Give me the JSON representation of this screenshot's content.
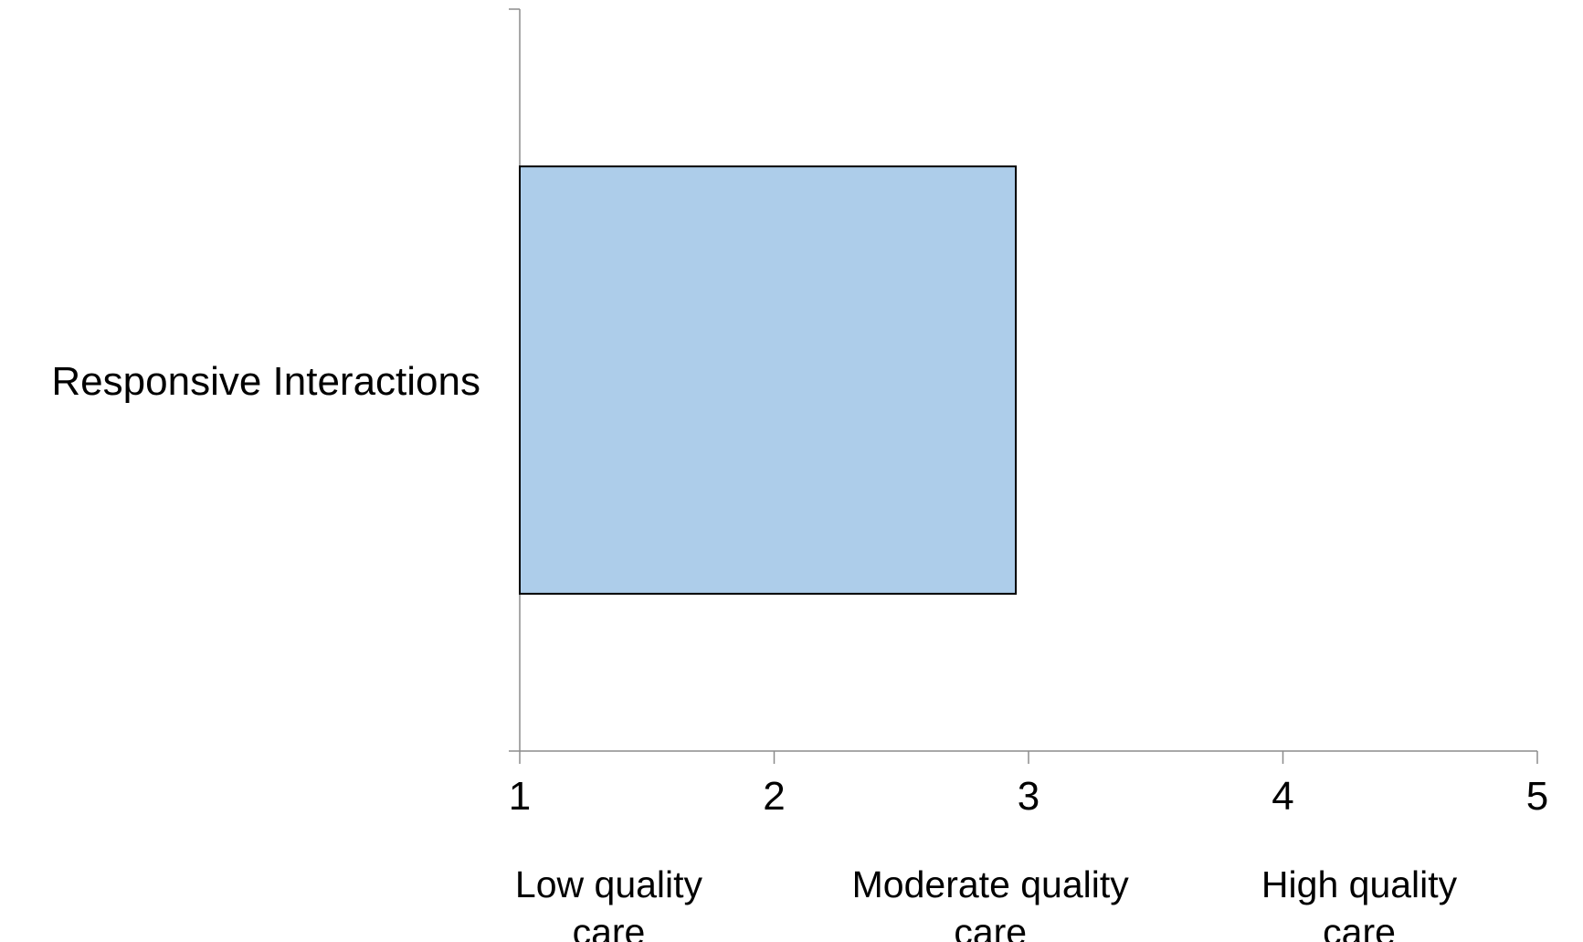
{
  "chart_data": {
    "type": "bar",
    "orientation": "horizontal",
    "categories": [
      "Responsive Interactions"
    ],
    "values": [
      2.95
    ],
    "xlim": [
      1,
      5
    ],
    "xticks": [
      "1",
      "2",
      "3",
      "4",
      "5"
    ],
    "x_anchor_labels": [
      {
        "at": 1.35,
        "lines": [
          "Low quality",
          "care"
        ]
      },
      {
        "at": 2.85,
        "lines": [
          "Moderate quality",
          "care"
        ]
      },
      {
        "at": 4.3,
        "lines": [
          "High quality",
          "care"
        ]
      }
    ],
    "grid": false,
    "legend": "none",
    "colors": {
      "bar_fill": "#adcdea",
      "bar_stroke": "#000000",
      "axis": "#8c8c8c",
      "text": "#000000"
    }
  }
}
